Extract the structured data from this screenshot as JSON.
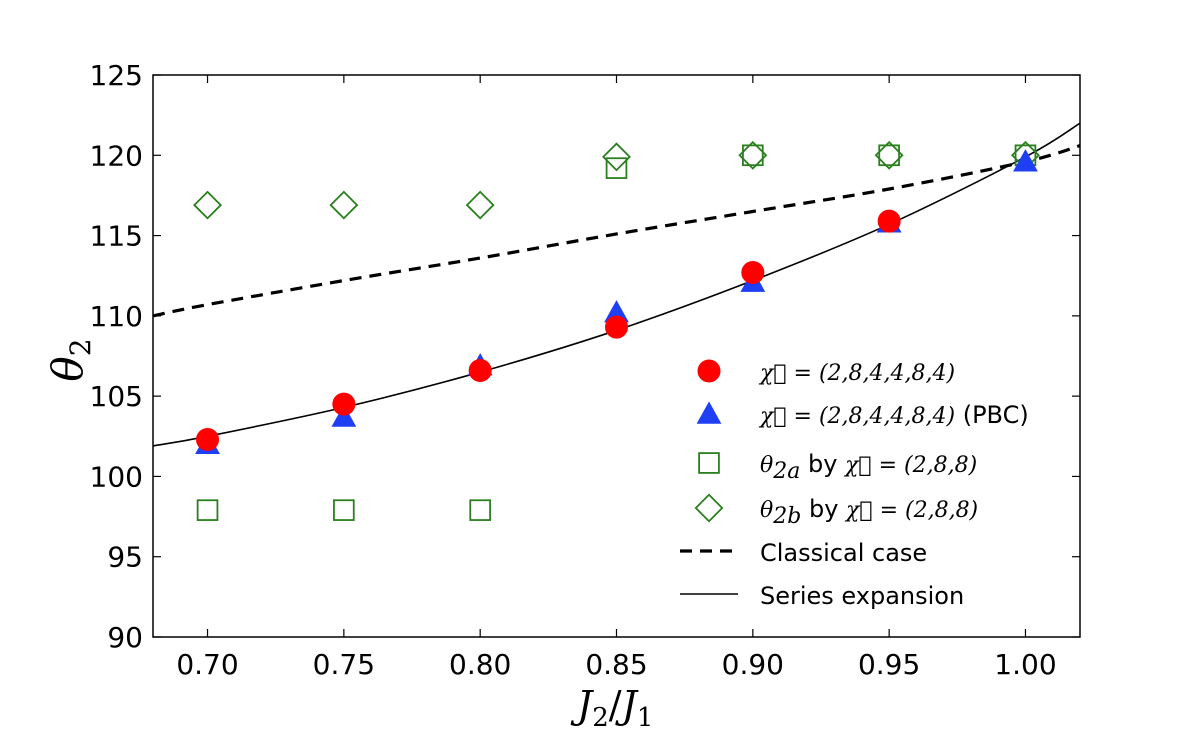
{
  "chart_data": {
    "type": "scatter",
    "title": "",
    "xlabel": {
      "main": "J",
      "sub1": "2",
      "slash": "/",
      "main2": "J",
      "sub2": "1"
    },
    "ylabel": {
      "main": "θ",
      "sub": "2"
    },
    "xlim": [
      0.68,
      1.02
    ],
    "ylim": [
      90,
      125
    ],
    "xticks": [
      0.7,
      0.75,
      0.8,
      0.85,
      0.9,
      0.95,
      1.0
    ],
    "xtick_labels": [
      "0.70",
      "0.75",
      "0.80",
      "0.85",
      "0.90",
      "0.95",
      "1.00"
    ],
    "yticks": [
      90,
      95,
      100,
      105,
      110,
      115,
      120,
      125
    ],
    "ytick_labels": [
      "90",
      "95",
      "100",
      "105",
      "110",
      "115",
      "120",
      "125"
    ],
    "grid": false,
    "legend_position": "lower-right",
    "series": [
      {
        "name": "chi-284484",
        "marker": "circle",
        "color": "#ff0000",
        "x": [
          0.7,
          0.75,
          0.8,
          0.85,
          0.9,
          0.95
        ],
        "y": [
          102.3,
          104.5,
          106.6,
          109.3,
          112.7,
          115.9
        ],
        "legend_math": "χ⃗ = (2,8,4,4,8,4)",
        "legend_suffix": ""
      },
      {
        "name": "chi-284484-pbc",
        "marker": "triangle",
        "color": "#1f3ff5",
        "x": [
          0.7,
          0.75,
          0.8,
          0.85,
          0.9,
          0.95,
          1.0
        ],
        "y": [
          102.0,
          103.7,
          106.9,
          110.2,
          112.1,
          115.8,
          119.6
        ],
        "legend_math": "χ⃗ = (2,8,4,4,8,4)",
        "legend_suffix": " (PBC)"
      },
      {
        "name": "theta-2a",
        "marker": "square-open",
        "color": "#2a7f1e",
        "x": [
          0.7,
          0.75,
          0.8,
          0.85,
          0.9,
          0.95,
          1.0
        ],
        "y": [
          97.9,
          97.9,
          97.9,
          119.2,
          120.0,
          120.0,
          120.0
        ],
        "legend_math": "θ",
        "legend_sub": "2a",
        "legend_suffix": " by ",
        "legend_math2": "χ⃗ = (2,8,8)"
      },
      {
        "name": "theta-2b",
        "marker": "diamond-open",
        "color": "#2a7f1e",
        "x": [
          0.7,
          0.75,
          0.8,
          0.85,
          0.9,
          0.95,
          1.0
        ],
        "y": [
          116.9,
          116.9,
          116.9,
          119.9,
          120.0,
          120.0,
          120.0
        ],
        "legend_math": "θ",
        "legend_sub": "2b",
        "legend_suffix": " by ",
        "legend_math2": "χ⃗ = (2,8,8)"
      },
      {
        "name": "classical-case",
        "marker": "dashed-line",
        "color": "#000000",
        "x": [
          0.68,
          0.7,
          0.75,
          0.8,
          0.85,
          0.9,
          0.95,
          1.0,
          1.02
        ],
        "y": [
          110.0,
          110.7,
          112.2,
          113.6,
          115.1,
          116.5,
          117.9,
          119.6,
          120.6
        ],
        "legend_text": "Classical case"
      },
      {
        "name": "series-expansion",
        "marker": "solid-line",
        "color": "#000000",
        "x": [
          0.68,
          0.7,
          0.75,
          0.8,
          0.85,
          0.9,
          0.95,
          1.0,
          1.02
        ],
        "y": [
          101.9,
          102.5,
          104.3,
          106.5,
          109.1,
          112.2,
          115.7,
          119.9,
          122.0
        ],
        "legend_text": "Series expansion"
      }
    ]
  }
}
